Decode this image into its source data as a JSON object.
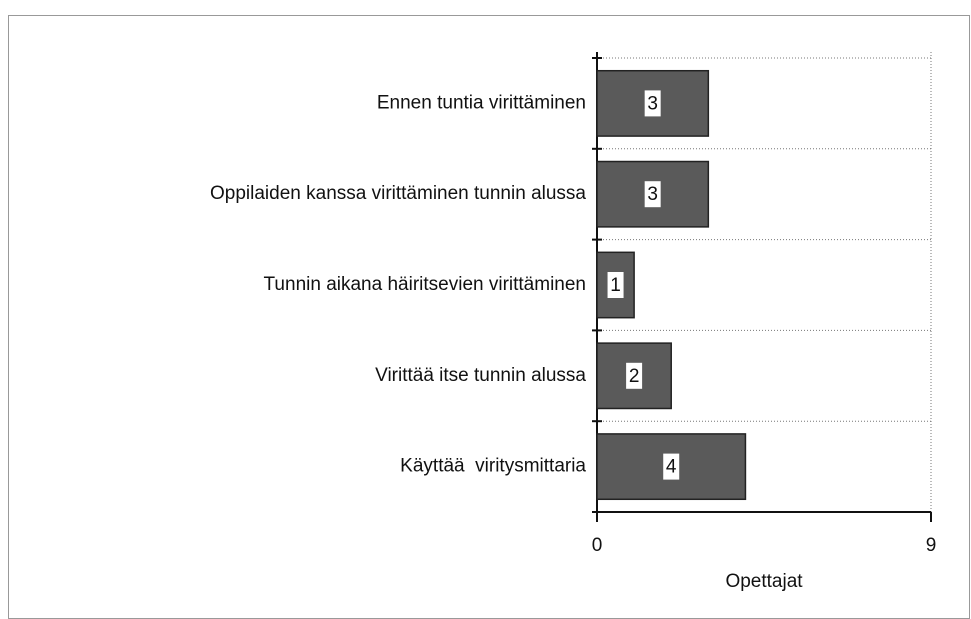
{
  "chart_data": {
    "type": "barh",
    "categories": [
      "Ennen tuntia virittäminen",
      "Oppilaiden kanssa virittäminen tunnin alussa",
      "Tunnin aikana häiritsevien virittäminen",
      "Virittää itse tunnin alussa",
      "Käyttää  viritysmittaria"
    ],
    "values": [
      3,
      3,
      1,
      2,
      4
    ],
    "color": "#5a5a5a",
    "xlabel": "Opettajat",
    "xlim": [
      0,
      9
    ],
    "xticks": [
      0,
      9
    ],
    "grid": true
  }
}
